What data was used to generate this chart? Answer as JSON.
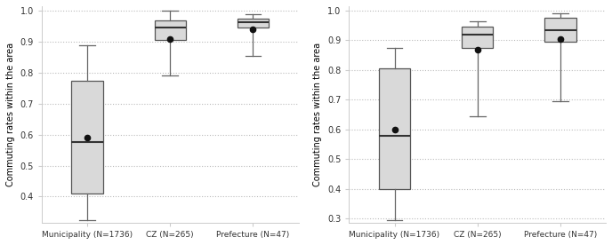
{
  "left_panel": {
    "ylim": [
      0.315,
      1.015
    ],
    "yticks": [
      0.4,
      0.5,
      0.6,
      0.7,
      0.8,
      0.9,
      1.0
    ],
    "ylabel": "Commuting rates within the area",
    "categories": [
      "Municipality (N=1736)",
      "CZ (N=265)",
      "Prefecture (N=47)"
    ],
    "boxes": [
      {
        "whislo": 0.325,
        "q1": 0.41,
        "med": 0.575,
        "q3": 0.775,
        "whishi": 0.89,
        "mean": 0.59
      },
      {
        "whislo": 0.79,
        "q1": 0.905,
        "med": 0.945,
        "q3": 0.97,
        "whishi": 1.0,
        "mean": 0.91
      },
      {
        "whislo": 0.855,
        "q1": 0.945,
        "med": 0.963,
        "q3": 0.975,
        "whishi": 0.99,
        "mean": 0.94
      }
    ]
  },
  "right_panel": {
    "ylim": [
      0.285,
      1.015
    ],
    "yticks": [
      0.3,
      0.4,
      0.5,
      0.6,
      0.7,
      0.8,
      0.9,
      1.0
    ],
    "ylabel": "Commuting rates within the area",
    "categories": [
      "Municipality (N=1736)",
      "CZ (N=265)",
      "Prefecture (N=47)"
    ],
    "boxes": [
      {
        "whislo": 0.295,
        "q1": 0.4,
        "med": 0.578,
        "q3": 0.805,
        "whishi": 0.875,
        "mean": 0.6
      },
      {
        "whislo": 0.645,
        "q1": 0.875,
        "med": 0.92,
        "q3": 0.945,
        "whishi": 0.965,
        "mean": 0.868
      },
      {
        "whislo": 0.695,
        "q1": 0.895,
        "med": 0.935,
        "q3": 0.975,
        "whishi": 0.99,
        "mean": 0.905
      }
    ]
  },
  "box_facecolor": "#d9d9d9",
  "box_edgecolor": "#555555",
  "median_color": "#333333",
  "mean_color": "#111111",
  "whisker_color": "#666666",
  "cap_color": "#666666",
  "grid_color": "#bbbbbb",
  "background_color": "#ffffff"
}
